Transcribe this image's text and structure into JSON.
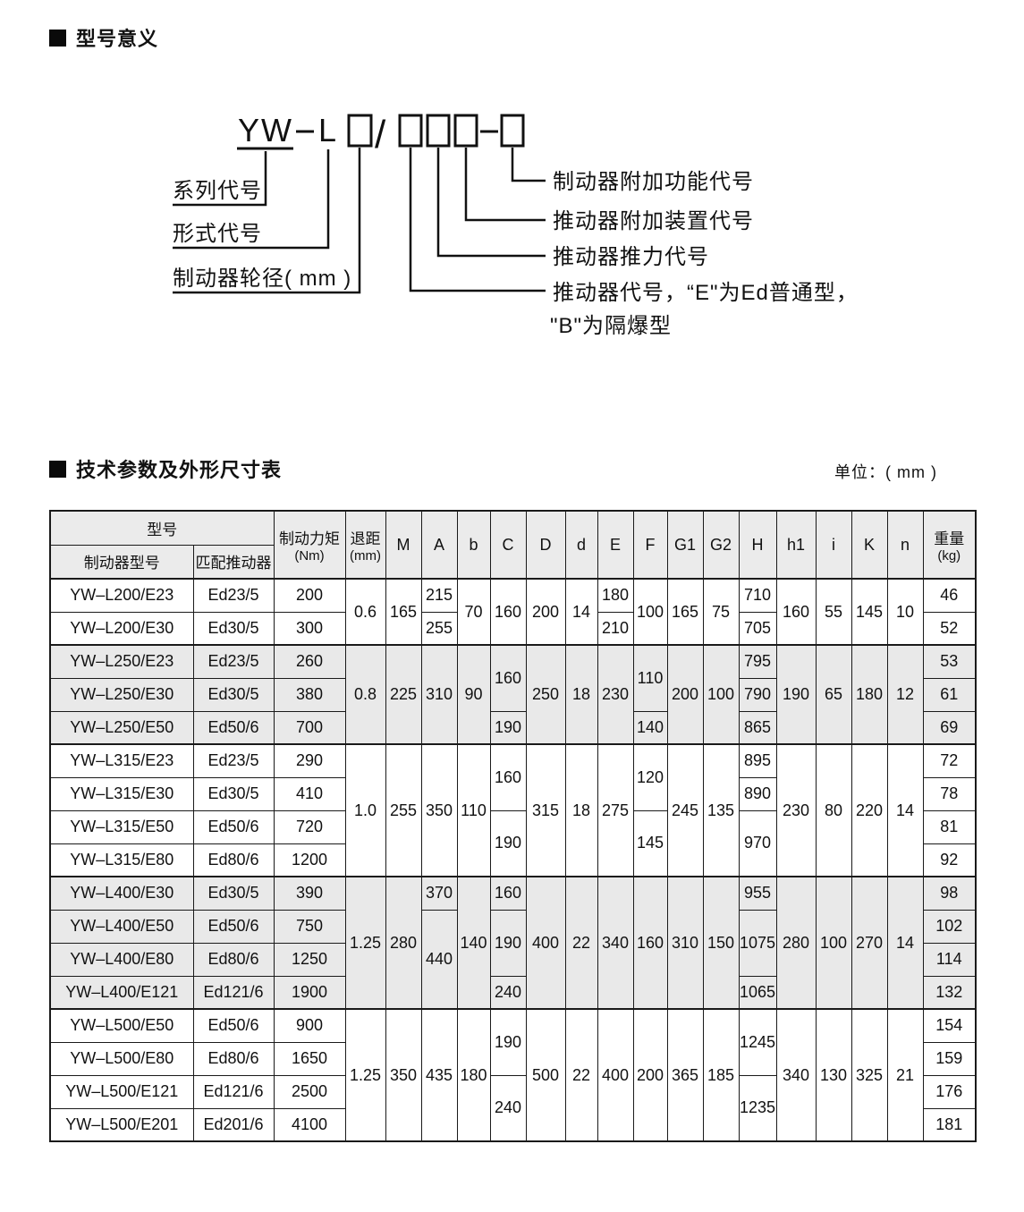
{
  "page": {
    "section1_title": "型号意义",
    "section2_title": "技术参数及外形尺寸表",
    "unit_note": "单位：( mm )"
  },
  "diagram": {
    "formula_prefix": "YW",
    "formula_form": "L",
    "formula_slash": "/",
    "left_labels": [
      "系列代号",
      "形式代号",
      "制动器轮径( mm )"
    ],
    "right_labels": [
      "制动器附加功能代号",
      "推动器附加装置代号",
      "推动器推力代号",
      "推动器代号，“E\"为Ed普通型，",
      "\"B\"为隔爆型"
    ]
  },
  "table": {
    "header": {
      "model_group": "型号",
      "brake_model": "制动器型号",
      "thruster": "匹配推动器",
      "torque_l1": "制动力矩",
      "torque_l2": "(Nm)",
      "recoil_l1": "退距",
      "recoil_l2": "(mm)",
      "dims": [
        "M",
        "A",
        "b",
        "C",
        "D",
        "d",
        "E",
        "F",
        "G1",
        "G2",
        "H",
        "h1",
        "i",
        "K",
        "n"
      ],
      "weight_l1": "重量",
      "weight_l2": "(kg)"
    },
    "rows": [
      {
        "groupStart": true,
        "shaded": false,
        "cells": [
          {
            "v": "YW–L200/E23"
          },
          {
            "v": "Ed23/5"
          },
          {
            "v": "200"
          },
          {
            "v": "0.6",
            "rs": 2
          },
          {
            "v": "165",
            "rs": 2
          },
          {
            "v": "215"
          },
          {
            "v": "70",
            "rs": 2
          },
          {
            "v": "160",
            "rs": 2
          },
          {
            "v": "200",
            "rs": 2
          },
          {
            "v": "14",
            "rs": 2
          },
          {
            "v": "180"
          },
          {
            "v": "100",
            "rs": 2
          },
          {
            "v": "165",
            "rs": 2
          },
          {
            "v": "75",
            "rs": 2
          },
          {
            "v": "710"
          },
          {
            "v": "160",
            "rs": 2
          },
          {
            "v": "55",
            "rs": 2
          },
          {
            "v": "145",
            "rs": 2
          },
          {
            "v": "10",
            "rs": 2
          },
          {
            "v": "46"
          }
        ]
      },
      {
        "shaded": false,
        "cells": [
          {
            "v": "YW–L200/E30"
          },
          {
            "v": "Ed30/5"
          },
          {
            "v": "300"
          },
          {
            "v": "255"
          },
          {
            "v": "210"
          },
          {
            "v": "705"
          },
          {
            "v": "52"
          }
        ]
      },
      {
        "groupStart": true,
        "shaded": true,
        "cells": [
          {
            "v": "YW–L250/E23"
          },
          {
            "v": "Ed23/5"
          },
          {
            "v": "260"
          },
          {
            "v": "0.8",
            "rs": 3
          },
          {
            "v": "225",
            "rs": 3
          },
          {
            "v": "310",
            "rs": 3
          },
          {
            "v": "90",
            "rs": 3
          },
          {
            "v": "160",
            "rs": 2
          },
          {
            "v": "250",
            "rs": 3
          },
          {
            "v": "18",
            "rs": 3
          },
          {
            "v": "230",
            "rs": 3
          },
          {
            "v": "110",
            "rs": 2
          },
          {
            "v": "200",
            "rs": 3
          },
          {
            "v": "100",
            "rs": 3
          },
          {
            "v": "795"
          },
          {
            "v": "190",
            "rs": 3
          },
          {
            "v": "65",
            "rs": 3
          },
          {
            "v": "180",
            "rs": 3
          },
          {
            "v": "12",
            "rs": 3
          },
          {
            "v": "53"
          }
        ]
      },
      {
        "shaded": true,
        "cells": [
          {
            "v": "YW–L250/E30"
          },
          {
            "v": "Ed30/5"
          },
          {
            "v": "380"
          },
          {
            "v": "790"
          },
          {
            "v": "61"
          }
        ]
      },
      {
        "shaded": true,
        "cells": [
          {
            "v": "YW–L250/E50"
          },
          {
            "v": "Ed50/6"
          },
          {
            "v": "700"
          },
          {
            "v": "190"
          },
          {
            "v": "140"
          },
          {
            "v": "865"
          },
          {
            "v": "69"
          }
        ]
      },
      {
        "groupStart": true,
        "shaded": false,
        "cells": [
          {
            "v": "YW–L315/E23"
          },
          {
            "v": "Ed23/5"
          },
          {
            "v": "290"
          },
          {
            "v": "1.0",
            "rs": 4
          },
          {
            "v": "255",
            "rs": 4
          },
          {
            "v": "350",
            "rs": 4
          },
          {
            "v": "110",
            "rs": 4
          },
          {
            "v": "160",
            "rs": 2
          },
          {
            "v": "315",
            "rs": 4
          },
          {
            "v": "18",
            "rs": 4
          },
          {
            "v": "275",
            "rs": 4
          },
          {
            "v": "120",
            "rs": 2
          },
          {
            "v": "245",
            "rs": 4
          },
          {
            "v": "135",
            "rs": 4
          },
          {
            "v": "895"
          },
          {
            "v": "230",
            "rs": 4
          },
          {
            "v": "80",
            "rs": 4
          },
          {
            "v": "220",
            "rs": 4
          },
          {
            "v": "14",
            "rs": 4
          },
          {
            "v": "72"
          }
        ]
      },
      {
        "shaded": false,
        "cells": [
          {
            "v": "YW–L315/E30"
          },
          {
            "v": "Ed30/5"
          },
          {
            "v": "410"
          },
          {
            "v": "890"
          },
          {
            "v": "78"
          }
        ]
      },
      {
        "shaded": false,
        "cells": [
          {
            "v": "YW–L315/E50"
          },
          {
            "v": "Ed50/6"
          },
          {
            "v": "720"
          },
          {
            "v": "190",
            "rs": 2
          },
          {
            "v": "145",
            "rs": 2
          },
          {
            "v": "970",
            "rs": 2
          },
          {
            "v": "81"
          }
        ]
      },
      {
        "shaded": false,
        "cells": [
          {
            "v": "YW–L315/E80"
          },
          {
            "v": "Ed80/6"
          },
          {
            "v": "1200"
          },
          {
            "v": "92"
          }
        ]
      },
      {
        "groupStart": true,
        "shaded": true,
        "cells": [
          {
            "v": "YW–L400/E30"
          },
          {
            "v": "Ed30/5"
          },
          {
            "v": "390"
          },
          {
            "v": "1.25",
            "rs": 4
          },
          {
            "v": "280",
            "rs": 4
          },
          {
            "v": "370"
          },
          {
            "v": "140",
            "rs": 4
          },
          {
            "v": "160"
          },
          {
            "v": "400",
            "rs": 4
          },
          {
            "v": "22",
            "rs": 4
          },
          {
            "v": "340",
            "rs": 4
          },
          {
            "v": "160",
            "rs": 4
          },
          {
            "v": "310",
            "rs": 4
          },
          {
            "v": "150",
            "rs": 4
          },
          {
            "v": "955"
          },
          {
            "v": "280",
            "rs": 4
          },
          {
            "v": "100",
            "rs": 4
          },
          {
            "v": "270",
            "rs": 4
          },
          {
            "v": "14",
            "rs": 4
          },
          {
            "v": "98"
          }
        ]
      },
      {
        "shaded": true,
        "cells": [
          {
            "v": "YW–L400/E50"
          },
          {
            "v": "Ed50/6"
          },
          {
            "v": "750"
          },
          {
            "v": "440",
            "rs": 3
          },
          {
            "v": "190",
            "rs": 2
          },
          {
            "v": "1075",
            "rs": 2
          },
          {
            "v": "102"
          }
        ]
      },
      {
        "shaded": true,
        "cells": [
          {
            "v": "YW–L400/E80"
          },
          {
            "v": "Ed80/6"
          },
          {
            "v": "1250"
          },
          {
            "v": "114"
          }
        ]
      },
      {
        "shaded": true,
        "cells": [
          {
            "v": "YW–L400/E121"
          },
          {
            "v": "Ed121/6"
          },
          {
            "v": "1900"
          },
          {
            "v": "240"
          },
          {
            "v": "1065"
          },
          {
            "v": "132"
          }
        ]
      },
      {
        "groupStart": true,
        "shaded": false,
        "cells": [
          {
            "v": "YW–L500/E50"
          },
          {
            "v": "Ed50/6"
          },
          {
            "v": "900"
          },
          {
            "v": "1.25",
            "rs": 4
          },
          {
            "v": "350",
            "rs": 4
          },
          {
            "v": "435",
            "rs": 4
          },
          {
            "v": "180",
            "rs": 4
          },
          {
            "v": "190",
            "rs": 2
          },
          {
            "v": "500",
            "rs": 4
          },
          {
            "v": "22",
            "rs": 4
          },
          {
            "v": "400",
            "rs": 4
          },
          {
            "v": "200",
            "rs": 4
          },
          {
            "v": "365",
            "rs": 4
          },
          {
            "v": "185",
            "rs": 4
          },
          {
            "v": "1245",
            "rs": 2
          },
          {
            "v": "340",
            "rs": 4
          },
          {
            "v": "130",
            "rs": 4
          },
          {
            "v": "325",
            "rs": 4
          },
          {
            "v": "21",
            "rs": 4
          },
          {
            "v": "154"
          }
        ]
      },
      {
        "shaded": false,
        "cells": [
          {
            "v": "YW–L500/E80"
          },
          {
            "v": "Ed80/6"
          },
          {
            "v": "1650"
          },
          {
            "v": "159"
          }
        ]
      },
      {
        "shaded": false,
        "cells": [
          {
            "v": "YW–L500/E121"
          },
          {
            "v": "Ed121/6"
          },
          {
            "v": "2500"
          },
          {
            "v": "240",
            "rs": 2
          },
          {
            "v": "1235",
            "rs": 2
          },
          {
            "v": "176"
          }
        ]
      },
      {
        "shaded": false,
        "cells": [
          {
            "v": "YW–L500/E201"
          },
          {
            "v": "Ed201/6"
          },
          {
            "v": "4100"
          },
          {
            "v": "181"
          }
        ]
      }
    ]
  }
}
